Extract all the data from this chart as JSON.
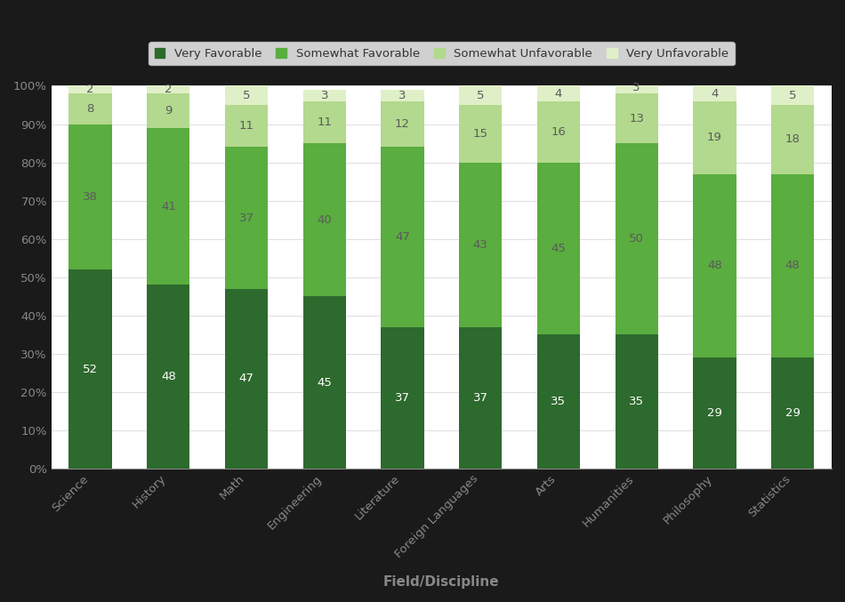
{
  "categories": [
    "Science",
    "History",
    "Math",
    "Engineering",
    "Literature",
    "Foreign Languages",
    "Arts",
    "Humanities",
    "Philosophy",
    "Statistics"
  ],
  "very_favorable": [
    52,
    48,
    47,
    45,
    37,
    37,
    35,
    35,
    29,
    29
  ],
  "somewhat_favorable": [
    38,
    41,
    37,
    40,
    47,
    43,
    45,
    50,
    48,
    48
  ],
  "somewhat_unfavorable": [
    8,
    9,
    11,
    11,
    12,
    15,
    16,
    13,
    19,
    18
  ],
  "very_unfavorable": [
    2,
    2,
    5,
    3,
    3,
    5,
    4,
    3,
    4,
    5
  ],
  "color_very_favorable": "#2d6a2d",
  "color_somewhat_favorable": "#5aad3f",
  "color_somewhat_unfavorable": "#b2d98d",
  "color_very_unfavorable": "#dff0c8",
  "color_background_outer": "#1a1a1a",
  "color_plot_area": "#ffffff",
  "color_label_vf": "#ffffff",
  "color_label_sf": "#5a5a5a",
  "color_label_su": "#5a5a5a",
  "color_label_vu": "#5a5a5a",
  "ylabel": "",
  "xlabel": "Field/Discipline",
  "title": "",
  "legend_labels": [
    "Very Favorable",
    "Somewhat Favorable",
    "Somewhat Unfavorable",
    "Very Unfavorable"
  ],
  "yticks": [
    0,
    10,
    20,
    30,
    40,
    50,
    60,
    70,
    80,
    90,
    100
  ],
  "ytick_labels": [
    "0%",
    "10%",
    "20%",
    "30%",
    "40%",
    "50%",
    "60%",
    "70%",
    "80%",
    "90%",
    "100%"
  ],
  "bar_width": 0.55,
  "figsize": [
    9.5,
    6.77
  ],
  "dpi": 100
}
